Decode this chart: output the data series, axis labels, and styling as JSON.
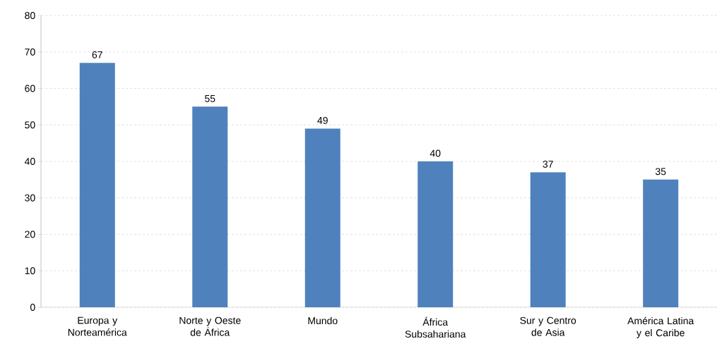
{
  "chart_data": {
    "type": "bar",
    "categories": [
      "Europa y Norteamérica",
      "Norte y Oeste de África",
      "Mundo",
      "África Subsahariana",
      "Sur y Centro de Asia",
      "América Latina y el Caribe"
    ],
    "values": [
      67,
      55,
      49,
      40,
      37,
      35
    ],
    "color": "#4f81bd",
    "ylim": [
      0,
      80
    ],
    "yticks": [
      0,
      10,
      20,
      30,
      40,
      50,
      60,
      70,
      80
    ],
    "grid": "y",
    "data_labels": true
  }
}
